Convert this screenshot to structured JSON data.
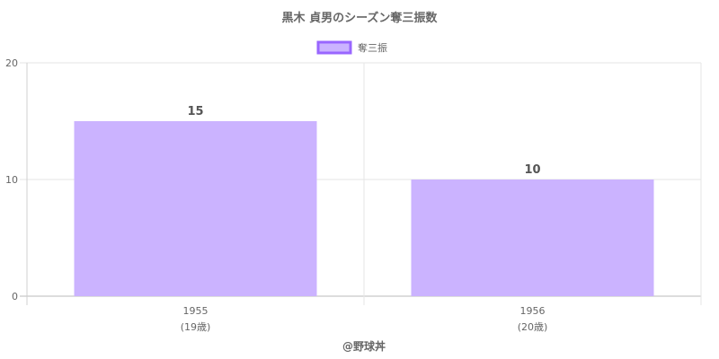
{
  "chart_data": {
    "type": "bar",
    "title": "黒木 貞男のシーズン奪三振数",
    "legend": {
      "label": "奪三振",
      "position": "top"
    },
    "categories": [
      "1955",
      "1956"
    ],
    "category_sublabels": [
      "(19歳)",
      "(20歳)"
    ],
    "series": [
      {
        "name": "奪三振",
        "values": [
          15,
          10
        ]
      }
    ],
    "ylim": [
      0,
      20
    ],
    "yticks": [
      0,
      10,
      20
    ],
    "grid": true,
    "colors": {
      "bar_fill": "#cbb3ff",
      "bar_border": "#9966ff"
    }
  },
  "footer": "@野球丼"
}
